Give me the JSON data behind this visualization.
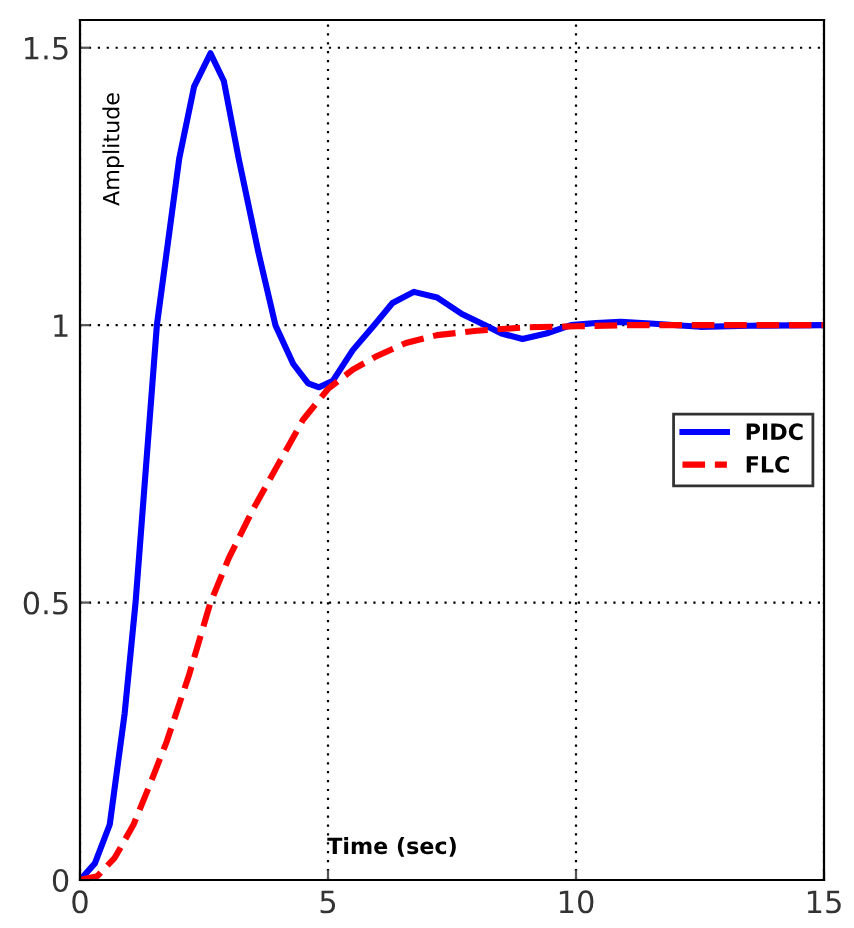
{
  "chart_data": {
    "type": "line",
    "xlabel": "Time (sec)",
    "ylabel": "Amplitude",
    "xlim": [
      0,
      15
    ],
    "xticks": [
      0,
      5,
      10,
      15
    ],
    "ylim": [
      0,
      1.55
    ],
    "yticks": [
      0,
      0.5,
      1,
      1.5
    ],
    "grid": true,
    "legend": "right",
    "series": [
      {
        "name": "PIDC",
        "color": "#0000ff",
        "line_style": "solid",
        "x": [
          0,
          0.3,
          0.6,
          0.9,
          1.12,
          1.55,
          2.0,
          2.3,
          2.63,
          2.9,
          3.2,
          3.6,
          3.94,
          4.3,
          4.6,
          4.82,
          5.1,
          5.5,
          5.93,
          6.3,
          6.73,
          7.2,
          7.7,
          8.17,
          8.5,
          8.92,
          9.4,
          9.9,
          10.4,
          10.9,
          11.5,
          12.5,
          13.5,
          15
        ],
        "values": [
          0,
          0.03,
          0.1,
          0.3,
          0.5,
          1.0,
          1.3,
          1.43,
          1.49,
          1.44,
          1.3,
          1.13,
          1.0,
          0.93,
          0.895,
          0.888,
          0.9,
          0.955,
          1.0,
          1.04,
          1.06,
          1.05,
          1.02,
          1.0,
          0.985,
          0.975,
          0.985,
          1.0,
          1.004,
          1.006,
          1.003,
          0.997,
          0.999,
          1.0
        ]
      },
      {
        "name": "FLC",
        "color": "#ff0000",
        "line_style": "dashed",
        "x": [
          0,
          0.35,
          0.7,
          1.08,
          1.4,
          1.75,
          2.2,
          2.63,
          3.0,
          3.5,
          4.0,
          4.5,
          5.0,
          5.5,
          6.0,
          6.57,
          7.2,
          8.0,
          9.0,
          10.0,
          11.0,
          12.5,
          15
        ],
        "values": [
          0,
          0.007,
          0.04,
          0.1,
          0.17,
          0.25,
          0.37,
          0.5,
          0.58,
          0.67,
          0.75,
          0.83,
          0.885,
          0.92,
          0.945,
          0.968,
          0.982,
          0.99,
          0.996,
          0.998,
          1.0,
          1.0,
          1.0
        ]
      }
    ]
  }
}
